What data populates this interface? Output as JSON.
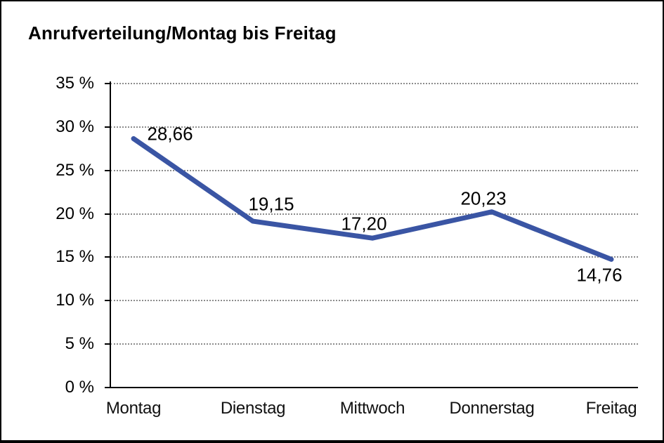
{
  "title": "Anrufverteilung/Montag bis Freitag",
  "chart_data": {
    "type": "line",
    "title": "Anrufverteilung/Montag bis Freitag",
    "categories": [
      "Montag",
      "Dienstag",
      "Mittwoch",
      "Donnerstag",
      "Freitag"
    ],
    "values": [
      28.66,
      19.15,
      17.2,
      20.23,
      14.76
    ],
    "point_labels": [
      "28,66",
      "19,15",
      "17,20",
      "20,23",
      "14,76"
    ],
    "xlabel": "",
    "ylabel": "",
    "ylim": [
      0,
      35
    ],
    "y_ticks": [
      {
        "value": 0,
        "label": "0 %"
      },
      {
        "value": 5,
        "label": "5 %"
      },
      {
        "value": 10,
        "label": "10 %"
      },
      {
        "value": 15,
        "label": "15 %"
      },
      {
        "value": 20,
        "label": "20 %"
      },
      {
        "value": 25,
        "label": "25 %"
      },
      {
        "value": 30,
        "label": "30 %"
      },
      {
        "value": 35,
        "label": "35 %"
      }
    ],
    "grid": "horizontal-dotted",
    "legend": "none",
    "line_color": "#3A55A4",
    "axis_color": "#000000",
    "grid_color": "#8c8c8c",
    "text_color": "#000000"
  }
}
